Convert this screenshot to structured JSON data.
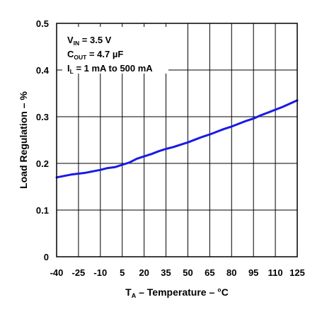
{
  "chart_data": {
    "type": "line",
    "xlabel": {
      "main": "T",
      "sub": "A",
      "rest": " – Temperature – °C"
    },
    "ylabel": "Load Regulation – %",
    "xlim": [
      -40,
      125
    ],
    "ylim": [
      0,
      0.5
    ],
    "xticks": [
      -40,
      -25,
      -10,
      5,
      20,
      35,
      50,
      65,
      80,
      95,
      110,
      125
    ],
    "xtick_labels": [
      "-40",
      "-25",
      "-10",
      "5",
      "20",
      "35",
      "50",
      "65",
      "80",
      "95",
      "110",
      "125"
    ],
    "yticks": [
      0,
      0.1,
      0.2,
      0.3,
      0.4,
      0.5
    ],
    "ytick_labels": [
      "0",
      "0.1",
      "0.2",
      "0.3",
      "0.4",
      "0.5"
    ],
    "grid": true,
    "color": "#1a1ae6",
    "annotations": [
      {
        "main": "V",
        "sub": "IN",
        "rest": " =  3.5 V"
      },
      {
        "main": "C",
        "sub": "OUT",
        "rest": " = 4.7 µF"
      },
      {
        "main": "I",
        "sub": "L",
        "rest": " = 1 mA to 500 mA"
      }
    ],
    "series": [
      {
        "x": [
          -40,
          -35,
          -30,
          -25,
          -20,
          -15,
          -10,
          -5,
          0,
          5,
          10,
          15,
          20,
          25,
          30,
          35,
          40,
          45,
          50,
          55,
          60,
          65,
          70,
          75,
          80,
          85,
          90,
          95,
          100,
          105,
          110,
          115,
          120,
          125
        ],
        "y": [
          0.17,
          0.173,
          0.176,
          0.178,
          0.18,
          0.183,
          0.186,
          0.19,
          0.192,
          0.197,
          0.202,
          0.21,
          0.215,
          0.22,
          0.226,
          0.231,
          0.235,
          0.24,
          0.245,
          0.251,
          0.257,
          0.262,
          0.268,
          0.274,
          0.279,
          0.285,
          0.291,
          0.296,
          0.303,
          0.309,
          0.315,
          0.321,
          0.328,
          0.335
        ]
      }
    ]
  }
}
